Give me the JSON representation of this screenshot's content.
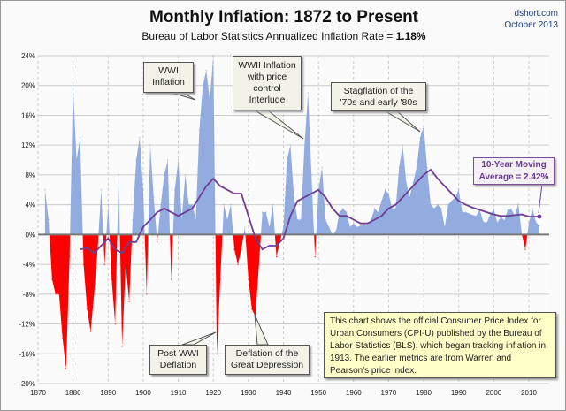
{
  "header": {
    "title": "Monthly Inflation: 1872 to Present",
    "subtitle_prefix": "Bureau of Labor Statistics Annualized Inflation Rate = ",
    "subtitle_value": "1.18%",
    "source": "dshort.com",
    "date": "October 2013"
  },
  "chart_data": {
    "type": "area",
    "title": "Monthly Inflation: 1872 to Present",
    "xlim": [
      1870,
      2014
    ],
    "ylim": [
      -20,
      24
    ],
    "x_ticks": [
      "1870",
      "1880",
      "1890",
      "1900",
      "1910",
      "1920",
      "1930",
      "1940",
      "1950",
      "1960",
      "1970",
      "1980",
      "1990",
      "2000",
      "2010"
    ],
    "y_ticks": [
      "24%",
      "20%",
      "16%",
      "12%",
      "8%",
      "4%",
      "0%",
      "-4%",
      "-8%",
      "-12%",
      "-16%",
      "-20%"
    ],
    "grid": true,
    "colors": {
      "positive": "#92acdf",
      "negative": "#ff0000",
      "moving_average": "#6f3c96"
    },
    "series": [
      {
        "role": "inflation",
        "x": [
          1872,
          1873,
          1874,
          1875,
          1876,
          1877,
          1878,
          1879,
          1880,
          1881,
          1882,
          1883,
          1884,
          1885,
          1886,
          1887,
          1888,
          1889,
          1890,
          1891,
          1892,
          1893,
          1894,
          1895,
          1896,
          1897,
          1898,
          1899,
          1900,
          1901,
          1902,
          1903,
          1904,
          1905,
          1906,
          1907,
          1908,
          1909,
          1910,
          1911,
          1912,
          1913,
          1914,
          1915,
          1916,
          1917,
          1918,
          1919,
          1920,
          1921,
          1922,
          1923,
          1924,
          1925,
          1926,
          1927,
          1928,
          1929,
          1930,
          1931,
          1932,
          1933,
          1934,
          1935,
          1936,
          1937,
          1938,
          1939,
          1940,
          1941,
          1942,
          1943,
          1944,
          1945,
          1946,
          1947,
          1948,
          1949,
          1950,
          1951,
          1952,
          1953,
          1954,
          1955,
          1956,
          1957,
          1958,
          1959,
          1960,
          1961,
          1962,
          1963,
          1964,
          1965,
          1966,
          1967,
          1968,
          1969,
          1970,
          1971,
          1972,
          1973,
          1974,
          1975,
          1976,
          1977,
          1978,
          1979,
          1980,
          1981,
          1982,
          1983,
          1984,
          1985,
          1986,
          1987,
          1988,
          1989,
          1990,
          1991,
          1992,
          1993,
          1994,
          1995,
          1996,
          1997,
          1998,
          1999,
          2000,
          2001,
          2002,
          2003,
          2004,
          2005,
          2006,
          2007,
          2008,
          2009,
          2010,
          2011,
          2012,
          2013
        ],
        "y": [
          6,
          2,
          -6,
          -8,
          -8,
          -14,
          -18,
          -3,
          20,
          10,
          13,
          -4,
          -10,
          -13,
          -8,
          -2,
          6,
          -4,
          4,
          -6,
          -12,
          8,
          -15,
          -4,
          -9,
          2,
          10,
          13,
          6,
          -8,
          12,
          5,
          -1,
          4,
          8,
          10,
          -6,
          6,
          10,
          2,
          8,
          4,
          4,
          2,
          14,
          20,
          22,
          18,
          24,
          -16,
          -6,
          4,
          2,
          4,
          -2,
          -4,
          -2,
          1,
          -6,
          -10,
          -11,
          -4,
          3,
          3,
          1,
          4,
          -3,
          -1,
          1,
          10,
          12,
          5,
          2,
          2,
          12,
          19,
          8,
          -3,
          6,
          9,
          2,
          1,
          0,
          0.5,
          3,
          3.5,
          3,
          1,
          1.5,
          1,
          1.2,
          1.3,
          1.3,
          2,
          3.5,
          3,
          4.5,
          6,
          5.5,
          3.5,
          3.5,
          9,
          12,
          7,
          5,
          7,
          9,
          13,
          14.5,
          9,
          4,
          3.5,
          4,
          3.5,
          1,
          4,
          4.5,
          5,
          6,
          3,
          3,
          2.8,
          2.6,
          2.5,
          3.3,
          1.7,
          1.6,
          2.7,
          3.4,
          1.6,
          2.4,
          1.9,
          3.3,
          3.4,
          2.5,
          4.1,
          0,
          -2,
          1.5,
          3.5,
          1.7,
          1.18
        ]
      },
      {
        "role": "10-year moving average",
        "x": [
          1882,
          1884,
          1886,
          1888,
          1890,
          1892,
          1894,
          1896,
          1898,
          1900,
          1902,
          1904,
          1906,
          1908,
          1910,
          1912,
          1914,
          1916,
          1918,
          1920,
          1922,
          1924,
          1926,
          1928,
          1930,
          1932,
          1934,
          1936,
          1938,
          1940,
          1942,
          1944,
          1946,
          1948,
          1950,
          1952,
          1954,
          1956,
          1958,
          1960,
          1962,
          1964,
          1966,
          1968,
          1970,
          1972,
          1974,
          1976,
          1978,
          1980,
          1982,
          1984,
          1986,
          1988,
          1990,
          1992,
          1994,
          1996,
          1998,
          2000,
          2002,
          2004,
          2006,
          2008,
          2010,
          2013
        ],
        "y": [
          -2,
          -1.8,
          -2.5,
          -1.5,
          -0.5,
          -2,
          -2.5,
          -1,
          -1,
          1,
          2,
          3,
          3.5,
          3,
          2.5,
          3,
          3.5,
          5,
          6.5,
          7.5,
          6.5,
          6,
          5.5,
          5.5,
          2.5,
          -0.5,
          -2,
          -1.5,
          -1.5,
          -0.5,
          2.5,
          4.5,
          5,
          5.5,
          6,
          5,
          3.5,
          2.5,
          2.5,
          2,
          1.5,
          1.5,
          2,
          2.5,
          3.5,
          4,
          5,
          6,
          7,
          8,
          8.7,
          7.5,
          6.5,
          5.5,
          4.5,
          4,
          3.6,
          3.3,
          3,
          2.7,
          2.5,
          2.5,
          2.6,
          2.7,
          2.4,
          2.42
        ]
      }
    ],
    "annotations": {
      "wwi": "WWI Inflation",
      "wwii": "WWII Inflation with price control Interlude",
      "stagflation": "Stagflation of the '70s and early '80s",
      "moving_average": "10-Year Moving Average = 2.42%",
      "post_wwi": "Post WWI Deflation",
      "depression": "Deflation of the Great Depression",
      "info": "This chart shows the official Consumer Price Index for Urban Consumers (CPI-U) published by the Bureau of Labor Statistics (BLS), which began tracking inflation in 1913.  The earlier metrics are from Warren and Pearson's  price index."
    }
  }
}
